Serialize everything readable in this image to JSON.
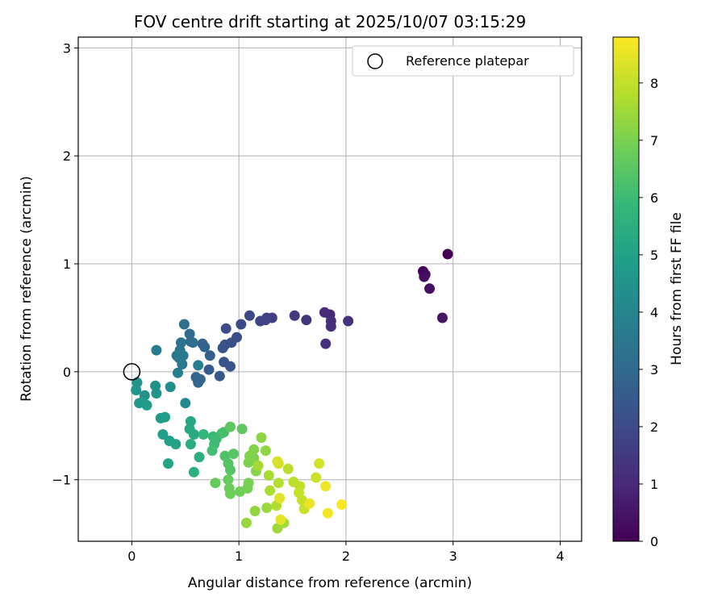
{
  "chart_data": {
    "type": "scatter",
    "title": "FOV centre drift starting at 2025/10/07 03:15:29",
    "xlabel": "Angular distance from reference (arcmin)",
    "ylabel": "Rotation from reference (arcmin)",
    "xlim": [
      -0.5,
      4.2
    ],
    "ylim": [
      -1.57,
      3.1
    ],
    "xticks": [
      0,
      1,
      2,
      3,
      4
    ],
    "xtick_labels": [
      "0",
      "1",
      "2",
      "3",
      "4"
    ],
    "yticks": [
      -1,
      0,
      1,
      2,
      3
    ],
    "ytick_labels": [
      "−1",
      "0",
      "1",
      "2",
      "3"
    ],
    "grid": true,
    "legend": {
      "position": "top-right",
      "label": "Reference platepar"
    },
    "reference_point": {
      "x": 0,
      "y": 0
    },
    "colorbar": {
      "label": "Hours from first FF file",
      "range": [
        0,
        8.8
      ],
      "ticks": [
        0,
        1,
        2,
        3,
        4,
        5,
        6,
        7,
        8
      ],
      "tick_labels": [
        "0",
        "1",
        "2",
        "3",
        "4",
        "5",
        "6",
        "7",
        "8"
      ],
      "colormap": "viridis"
    },
    "points": [
      [
        2.95,
        1.09,
        0.0
      ],
      [
        2.72,
        0.93,
        0.1
      ],
      [
        2.74,
        0.9,
        0.2
      ],
      [
        2.73,
        0.88,
        0.3
      ],
      [
        2.78,
        0.77,
        0.4
      ],
      [
        2.9,
        0.5,
        0.5
      ],
      [
        1.85,
        0.53,
        1.0
      ],
      [
        1.8,
        0.55,
        1.1
      ],
      [
        1.86,
        0.47,
        1.15
      ],
      [
        1.86,
        0.42,
        1.2
      ],
      [
        1.81,
        0.26,
        1.25
      ],
      [
        2.02,
        0.47,
        1.3
      ],
      [
        1.63,
        0.48,
        1.4
      ],
      [
        1.52,
        0.52,
        1.5
      ],
      [
        1.31,
        0.5,
        1.6
      ],
      [
        1.26,
        0.5,
        1.7
      ],
      [
        1.25,
        0.48,
        1.75
      ],
      [
        1.2,
        0.47,
        1.8
      ],
      [
        1.1,
        0.52,
        1.9
      ],
      [
        1.02,
        0.44,
        2.0
      ],
      [
        0.88,
        0.4,
        2.05
      ],
      [
        0.98,
        0.32,
        2.1
      ],
      [
        0.93,
        0.27,
        2.15
      ],
      [
        0.87,
        0.25,
        2.2
      ],
      [
        0.85,
        0.22,
        2.25
      ],
      [
        0.86,
        0.09,
        2.3
      ],
      [
        0.92,
        0.05,
        2.35
      ],
      [
        0.82,
        -0.04,
        2.4
      ],
      [
        0.72,
        0.02,
        2.5
      ],
      [
        0.73,
        0.15,
        2.6
      ],
      [
        0.66,
        0.26,
        2.7
      ],
      [
        0.68,
        0.23,
        2.75
      ],
      [
        0.6,
        -0.05,
        2.8
      ],
      [
        0.62,
        -0.1,
        2.85
      ],
      [
        0.64,
        -0.07,
        2.9
      ],
      [
        0.55,
        0.28,
        3.0
      ],
      [
        0.54,
        0.35,
        3.05
      ],
      [
        0.57,
        0.27,
        3.1
      ],
      [
        0.49,
        0.44,
        3.2
      ],
      [
        0.46,
        0.27,
        3.3
      ],
      [
        0.45,
        0.2,
        3.35
      ],
      [
        0.44,
        0.13,
        3.4
      ],
      [
        0.46,
        0.16,
        3.45
      ],
      [
        0.48,
        0.15,
        3.5
      ],
      [
        0.42,
        0.15,
        3.55
      ],
      [
        0.47,
        0.07,
        3.6
      ],
      [
        0.43,
        -0.01,
        3.65
      ],
      [
        0.23,
        0.2,
        3.7
      ],
      [
        0.62,
        0.06,
        3.8
      ],
      [
        0.5,
        -0.29,
        4.2
      ],
      [
        0.36,
        -0.14,
        4.3
      ],
      [
        0.22,
        -0.13,
        4.4
      ],
      [
        0.12,
        -0.22,
        4.45
      ],
      [
        0.23,
        -0.2,
        4.5
      ],
      [
        0.05,
        -0.1,
        4.55
      ],
      [
        0.04,
        -0.17,
        4.6
      ],
      [
        0.07,
        -0.29,
        4.7
      ],
      [
        0.1,
        -0.28,
        4.75
      ],
      [
        0.14,
        -0.31,
        4.8
      ],
      [
        0.27,
        -0.43,
        4.85
      ],
      [
        0.31,
        -0.42,
        4.9
      ],
      [
        0.29,
        -0.58,
        4.95
      ],
      [
        0.35,
        -0.64,
        5.0
      ],
      [
        0.41,
        -0.67,
        5.05
      ],
      [
        0.34,
        -0.85,
        5.1
      ],
      [
        0.55,
        -0.46,
        5.2
      ],
      [
        0.54,
        -0.53,
        5.3
      ],
      [
        0.58,
        -0.58,
        5.35
      ],
      [
        0.55,
        -0.67,
        5.4
      ],
      [
        0.63,
        -0.79,
        5.5
      ],
      [
        0.58,
        -0.93,
        5.55
      ],
      [
        0.67,
        -0.58,
        5.8
      ],
      [
        0.76,
        -0.6,
        5.9
      ],
      [
        0.79,
        -0.62,
        6.0
      ],
      [
        0.77,
        -0.67,
        6.05
      ],
      [
        0.75,
        -0.73,
        6.1
      ],
      [
        0.84,
        -0.57,
        6.15
      ],
      [
        0.86,
        -0.56,
        6.2
      ],
      [
        0.87,
        -0.78,
        6.3
      ],
      [
        0.9,
        -0.85,
        6.4
      ],
      [
        0.92,
        -0.91,
        6.45
      ],
      [
        0.95,
        -0.76,
        6.5
      ],
      [
        0.92,
        -0.51,
        6.55
      ],
      [
        1.03,
        -0.53,
        6.6
      ],
      [
        0.78,
        -1.03,
        6.65
      ],
      [
        0.9,
        -1.0,
        6.7
      ],
      [
        0.91,
        -1.08,
        6.75
      ],
      [
        0.92,
        -1.13,
        6.8
      ],
      [
        1.01,
        -1.11,
        6.85
      ],
      [
        1.08,
        -1.08,
        6.9
      ],
      [
        1.09,
        -1.03,
        6.95
      ],
      [
        1.14,
        -0.8,
        7.0
      ],
      [
        1.09,
        -0.84,
        7.05
      ],
      [
        1.1,
        -0.78,
        7.1
      ],
      [
        1.14,
        -0.72,
        7.15
      ],
      [
        1.16,
        -0.92,
        7.2
      ],
      [
        1.21,
        -0.61,
        7.25
      ],
      [
        1.25,
        -0.73,
        7.3
      ],
      [
        1.15,
        -1.29,
        7.35
      ],
      [
        1.07,
        -1.4,
        7.4
      ],
      [
        1.26,
        -1.26,
        7.45
      ],
      [
        1.36,
        -1.45,
        7.5
      ],
      [
        1.42,
        -1.4,
        7.55
      ],
      [
        1.18,
        -0.87,
        7.6
      ],
      [
        1.28,
        -0.96,
        7.65
      ],
      [
        1.29,
        -1.1,
        7.7
      ],
      [
        1.35,
        -1.24,
        7.75
      ],
      [
        1.37,
        -1.03,
        7.8
      ],
      [
        1.46,
        -0.9,
        7.85
      ],
      [
        1.51,
        -1.02,
        7.9
      ],
      [
        1.57,
        -1.06,
        7.95
      ],
      [
        1.56,
        -1.12,
        8.0
      ],
      [
        1.59,
        -1.19,
        8.05
      ],
      [
        1.61,
        -1.27,
        8.1
      ],
      [
        1.72,
        -0.98,
        8.15
      ],
      [
        1.75,
        -0.85,
        8.2
      ],
      [
        1.37,
        -0.85,
        8.25
      ],
      [
        1.36,
        -0.83,
        8.3
      ],
      [
        1.38,
        -1.17,
        8.4
      ],
      [
        1.39,
        -1.37,
        8.5
      ],
      [
        1.66,
        -1.22,
        8.55
      ],
      [
        1.81,
        -1.06,
        8.6
      ],
      [
        1.83,
        -1.31,
        8.65
      ],
      [
        1.96,
        -1.23,
        8.75
      ]
    ]
  }
}
